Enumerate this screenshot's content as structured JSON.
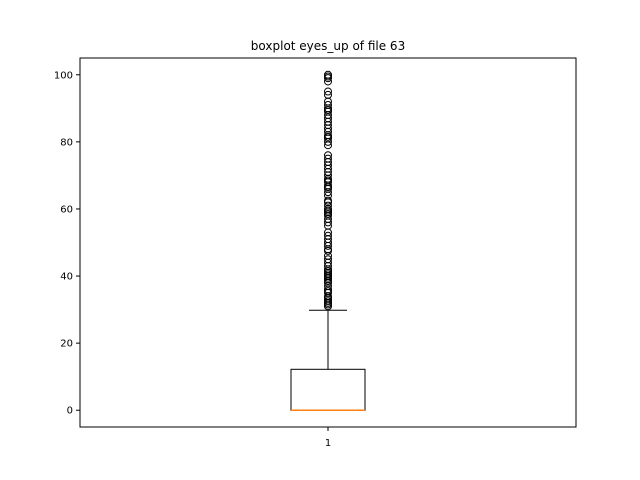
{
  "chart_data": {
    "type": "boxplot",
    "title": "boxplot eyes_up of file 63",
    "xlabel": "",
    "ylabel": "",
    "categories": [
      "1"
    ],
    "ylim": [
      -5,
      105
    ],
    "yticks": [
      0,
      20,
      40,
      60,
      80,
      100
    ],
    "grid": false,
    "legend": "none",
    "boxes": [
      {
        "label": "1",
        "whisker_low": 0,
        "q1": 0,
        "median": 0,
        "q3": 12.2,
        "whisker_high": 29.8,
        "fliers": [
          31,
          31.5,
          32,
          32.5,
          33,
          33.5,
          34,
          35,
          35.5,
          36,
          37,
          38,
          38.5,
          39,
          39.5,
          40,
          40.5,
          41,
          41.5,
          42,
          43,
          44,
          45,
          46,
          47.5,
          48,
          49,
          50,
          51,
          52,
          53,
          55,
          56,
          57,
          58,
          58.5,
          59,
          59.5,
          60,
          61,
          62,
          62.5,
          64,
          65,
          66,
          66.5,
          67,
          68,
          68.5,
          69,
          70,
          71,
          72,
          73,
          74,
          75,
          76,
          79,
          80,
          81,
          81.5,
          82,
          83,
          84,
          85,
          86,
          87,
          88,
          89,
          89.5,
          90,
          91,
          92,
          94,
          95,
          98,
          99,
          99.5,
          100
        ]
      }
    ],
    "colors": {
      "box": "#000000",
      "median": "#ff7f0e",
      "flier": "#000000"
    }
  }
}
